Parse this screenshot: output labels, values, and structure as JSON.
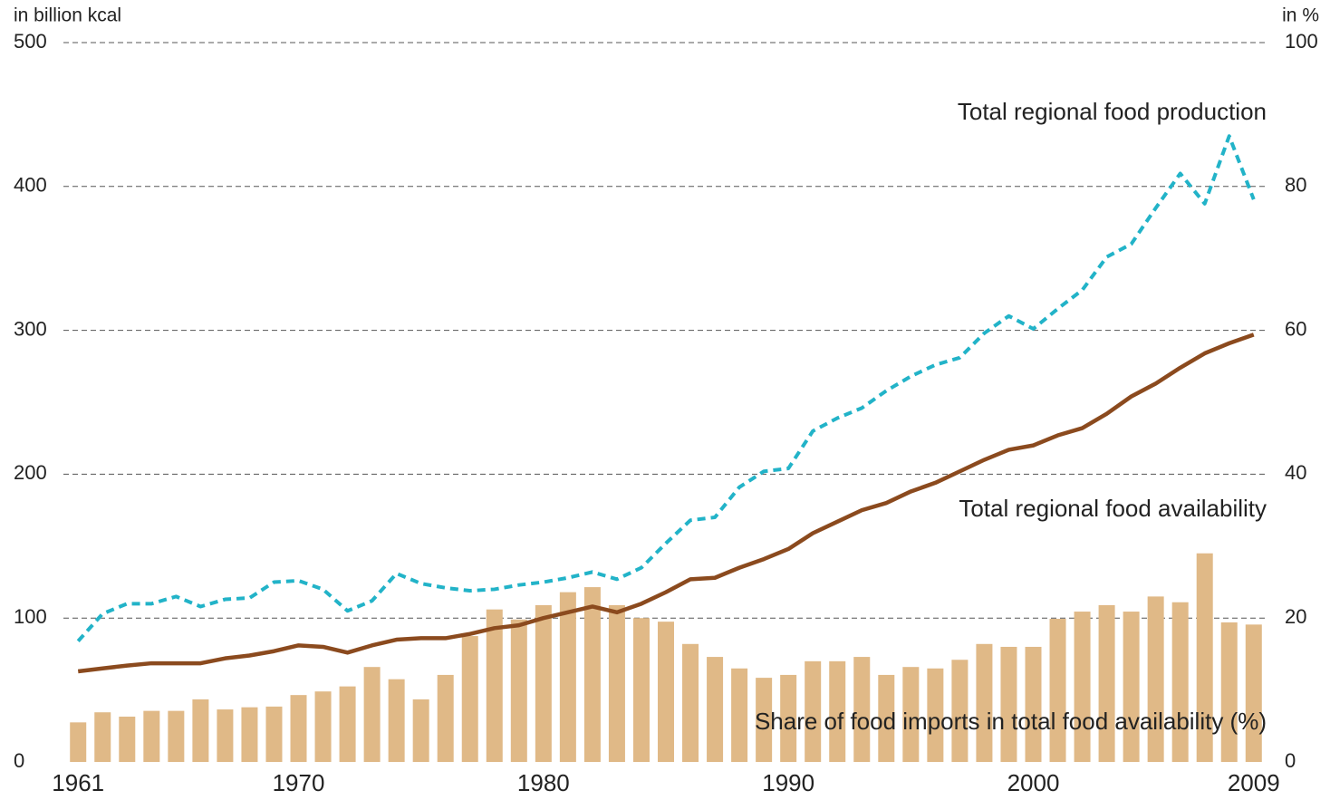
{
  "chart_data": {
    "type": "bar-line",
    "y_label": "in billion kcal",
    "y2_label": "in %",
    "x": [
      1961,
      1962,
      1963,
      1964,
      1965,
      1966,
      1967,
      1968,
      1969,
      1970,
      1971,
      1972,
      1973,
      1974,
      1975,
      1976,
      1977,
      1978,
      1979,
      1980,
      1981,
      1982,
      1983,
      1984,
      1985,
      1986,
      1987,
      1988,
      1989,
      1990,
      1991,
      1992,
      1993,
      1994,
      1995,
      1996,
      1997,
      1998,
      1999,
      2000,
      2001,
      2002,
      2003,
      2004,
      2005,
      2006,
      2007,
      2008,
      2009
    ],
    "xlim": [
      1960.4,
      2009.6
    ],
    "xticks": [
      1961,
      1970,
      1980,
      1990,
      2000,
      2009
    ],
    "ylim": [
      0,
      500
    ],
    "yticks": [
      0,
      100,
      200,
      300,
      400,
      500
    ],
    "y2lim": [
      0,
      100
    ],
    "y2ticks": [
      0,
      20,
      40,
      60,
      80,
      100
    ],
    "grid": true,
    "series": [
      {
        "name": "Share of food imports in total food availability (%)",
        "kind": "bar",
        "axis": "y2",
        "color": "#e0b987",
        "values": [
          5.5,
          6.9,
          6.3,
          7.1,
          7.1,
          8.7,
          7.3,
          7.6,
          7.7,
          9.3,
          9.8,
          10.5,
          13.2,
          11.5,
          8.7,
          12.1,
          17.5,
          21.2,
          19.8,
          21.8,
          23.6,
          24.3,
          21.8,
          20.0,
          19.5,
          16.4,
          14.6,
          13.0,
          11.7,
          12.1,
          14.0,
          14.0,
          14.6,
          12.1,
          13.2,
          13.0,
          14.2,
          16.4,
          16.0,
          16.0,
          19.9,
          20.9,
          21.8,
          20.9,
          23.0,
          22.2,
          29.0,
          19.4,
          19.1
        ]
      },
      {
        "name": "Total regional food production",
        "kind": "dashed-line",
        "color": "#22b3c8",
        "values": [
          84,
          103,
          110,
          110,
          115,
          108,
          113,
          114,
          125,
          126,
          120,
          105,
          112,
          131,
          124,
          121,
          119,
          120,
          123,
          125,
          128,
          132,
          127,
          135,
          152,
          168,
          170,
          191,
          202,
          204,
          230,
          239,
          246,
          258,
          268,
          276,
          281,
          298,
          310,
          301,
          315,
          328,
          351,
          360,
          385,
          409,
          388,
          435,
          391
        ]
      },
      {
        "name": "Total regional food availability",
        "kind": "line",
        "color": "#8b4a1e",
        "values": [
          63,
          65,
          67,
          68.6,
          68.6,
          68.6,
          72,
          74,
          77,
          81,
          80,
          76,
          81,
          85,
          86,
          86,
          89,
          93,
          95,
          100,
          104,
          108,
          104,
          110,
          118,
          127,
          128,
          135,
          141,
          148,
          159,
          167,
          175,
          180,
          188,
          194,
          202,
          210,
          217,
          220,
          227,
          232,
          242,
          254,
          263,
          274,
          284,
          291,
          297
        ]
      }
    ]
  }
}
